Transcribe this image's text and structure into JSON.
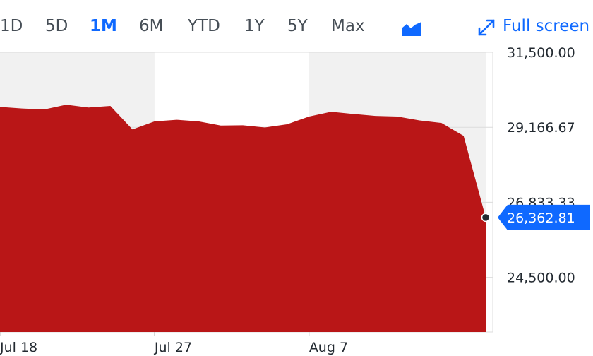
{
  "ranges": {
    "d1": "1D",
    "d5": "5D",
    "m1": "1M",
    "m6": "6M",
    "ytd": "YTD",
    "y1": "1Y",
    "y5": "5Y",
    "max": "Max",
    "active": "1M"
  },
  "toolbar": {
    "chart_type_icon": "mountain-chart-icon",
    "fullscreen_icon": "expand-arrows-icon",
    "fullscreen_label": "Full screen"
  },
  "colors": {
    "area": "#b91617",
    "accent": "#0f69ff",
    "shade": "#f1f1f1"
  },
  "chart_data": {
    "type": "area",
    "title": "",
    "xlabel": "",
    "ylabel": "",
    "ylim": [
      22800,
      31500
    ],
    "y_ticks": [
      "31,500.00",
      "29,166.67",
      "26,833.33",
      "24,500.00"
    ],
    "x_ticks": [
      "Jul 18",
      "Jul 27",
      "Aug 7"
    ],
    "last_value": "26,362.81",
    "x": [
      "Jul 18",
      "Jul 19",
      "Jul 20",
      "Jul 21",
      "Jul 24",
      "Jul 25",
      "Jul 26",
      "Jul 27",
      "Jul 28",
      "Jul 31",
      "Aug 1",
      "Aug 2",
      "Aug 3",
      "Aug 4",
      "Aug 7",
      "Aug 8",
      "Aug 9",
      "Aug 10",
      "Aug 11",
      "Aug 14",
      "Aug 15",
      "Aug 16",
      "Aug 17"
    ],
    "values": [
      29800,
      29750,
      29720,
      29870,
      29780,
      29830,
      29100,
      29350,
      29400,
      29350,
      29220,
      29230,
      29160,
      29260,
      29500,
      29650,
      29580,
      29520,
      29500,
      29380,
      29300,
      28900,
      26362.81
    ],
    "shaded_periods": [
      [
        "Jul 18",
        "Jul 27"
      ],
      [
        "Aug 7",
        "Aug 17"
      ]
    ],
    "grid": true,
    "legend": "none"
  }
}
